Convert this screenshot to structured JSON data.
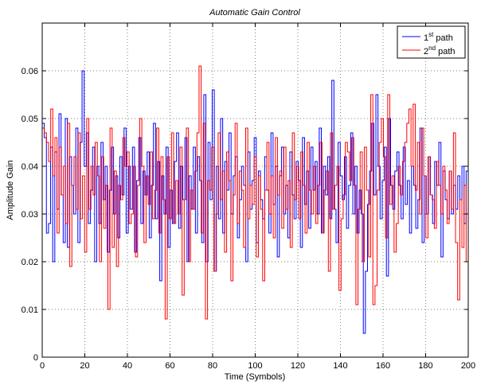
{
  "chart_data": {
    "type": "line",
    "style": "step",
    "title": "Automatic Gain Control",
    "xlabel": "Time (Symbols)",
    "ylabel": "Amplitude Gain",
    "xlim": [
      0,
      200
    ],
    "ylim": [
      0,
      0.07
    ],
    "xticks": [
      0,
      20,
      40,
      60,
      80,
      100,
      120,
      140,
      160,
      180,
      200
    ],
    "yticks": [
      0,
      0.01,
      0.02,
      0.03,
      0.04,
      0.05,
      0.06
    ],
    "xtick_labels": [
      "0",
      "20",
      "40",
      "60",
      "80",
      "100",
      "120",
      "140",
      "160",
      "180",
      "200"
    ],
    "ytick_labels": [
      "0",
      "0.01",
      "0.02",
      "0.03",
      "0.04",
      "0.05",
      "0.06"
    ],
    "grid": true,
    "legend_position": "top-right",
    "legend": [
      {
        "base": "1",
        "sup": "st",
        "rest": " path"
      },
      {
        "base": "2",
        "sup": "nd",
        "rest": " path"
      }
    ],
    "series": [
      {
        "color": "#0000ff",
        "values": [
          0.049,
          0.046,
          0.026,
          0.028,
          0.044,
          0.02,
          0.043,
          0.031,
          0.051,
          0.034,
          0.024,
          0.05,
          0.023,
          0.042,
          0.036,
          0.03,
          0.048,
          0.024,
          0.045,
          0.06,
          0.04,
          0.047,
          0.028,
          0.035,
          0.044,
          0.02,
          0.04,
          0.028,
          0.045,
          0.033,
          0.04,
          0.022,
          0.035,
          0.044,
          0.03,
          0.038,
          0.025,
          0.042,
          0.034,
          0.048,
          0.026,
          0.04,
          0.031,
          0.044,
          0.022,
          0.037,
          0.046,
          0.028,
          0.039,
          0.034,
          0.043,
          0.025,
          0.036,
          0.049,
          0.029,
          0.041,
          0.016,
          0.038,
          0.03,
          0.044,
          0.023,
          0.035,
          0.028,
          0.041,
          0.047,
          0.027,
          0.04,
          0.033,
          0.046,
          0.02,
          0.038,
          0.031,
          0.044,
          0.026,
          0.042,
          0.037,
          0.024,
          0.055,
          0.02,
          0.045,
          0.033,
          0.056,
          0.018,
          0.04,
          0.029,
          0.05,
          0.026,
          0.041,
          0.035,
          0.047,
          0.03,
          0.038,
          0.042,
          0.025,
          0.033,
          0.04,
          0.036,
          0.02,
          0.043,
          0.031,
          0.037,
          0.046,
          0.024,
          0.039,
          0.033,
          0.029,
          0.042,
          0.035,
          0.026,
          0.047,
          0.032,
          0.04,
          0.021,
          0.038,
          0.044,
          0.03,
          0.036,
          0.025,
          0.043,
          0.034,
          0.029,
          0.041,
          0.037,
          0.023,
          0.046,
          0.032,
          0.039,
          0.027,
          0.044,
          0.035,
          0.041,
          0.03,
          0.048,
          0.026,
          0.04,
          0.034,
          0.042,
          0.029,
          0.058,
          0.031,
          0.024,
          0.045,
          0.038,
          0.033,
          0.042,
          0.027,
          0.036,
          0.047,
          0.03,
          0.04,
          0.026,
          0.035,
          0.03,
          0.005,
          0.018,
          0.032,
          0.039,
          0.049,
          0.034,
          0.055,
          0.04,
          0.029,
          0.037,
          0.044,
          0.017,
          0.05,
          0.036,
          0.031,
          0.039,
          0.043,
          0.036,
          0.029,
          0.044,
          0.032,
          0.037,
          0.026,
          0.04,
          0.036,
          0.027,
          0.033,
          0.048,
          0.024,
          0.038,
          0.03,
          0.042,
          0.034,
          0.028,
          0.041,
          0.036,
          0.045,
          0.021,
          0.039,
          0.033,
          0.029,
          0.039,
          0.03,
          0.036,
          0.031,
          0.038,
          0.033,
          0.04,
          0.028,
          0.039
        ]
      },
      {
        "color": "#ff0000",
        "values": [
          0.048,
          0.047,
          0.045,
          0.041,
          0.052,
          0.038,
          0.046,
          0.026,
          0.044,
          0.034,
          0.04,
          0.028,
          0.049,
          0.019,
          0.036,
          0.042,
          0.031,
          0.047,
          0.029,
          0.038,
          0.022,
          0.05,
          0.031,
          0.04,
          0.034,
          0.045,
          0.038,
          0.02,
          0.042,
          0.027,
          0.036,
          0.01,
          0.048,
          0.023,
          0.039,
          0.019,
          0.036,
          0.033,
          0.046,
          0.04,
          0.043,
          0.028,
          0.03,
          0.04,
          0.021,
          0.036,
          0.05,
          0.04,
          0.024,
          0.038,
          0.032,
          0.043,
          0.029,
          0.035,
          0.048,
          0.026,
          0.042,
          0.033,
          0.008,
          0.042,
          0.029,
          0.047,
          0.028,
          0.037,
          0.03,
          0.044,
          0.013,
          0.033,
          0.048,
          0.02,
          0.035,
          0.031,
          0.039,
          0.047,
          0.061,
          0.026,
          0.049,
          0.008,
          0.037,
          0.035,
          0.044,
          0.018,
          0.03,
          0.047,
          0.033,
          0.039,
          0.022,
          0.043,
          0.037,
          0.016,
          0.034,
          0.049,
          0.028,
          0.039,
          0.035,
          0.023,
          0.048,
          0.029,
          0.036,
          0.032,
          0.042,
          0.021,
          0.038,
          0.031,
          0.016,
          0.035,
          0.045,
          0.03,
          0.038,
          0.025,
          0.046,
          0.034,
          0.039,
          0.027,
          0.044,
          0.031,
          0.037,
          0.023,
          0.047,
          0.033,
          0.04,
          0.029,
          0.043,
          0.036,
          0.026,
          0.045,
          0.035,
          0.03,
          0.04,
          0.028,
          0.036,
          0.045,
          0.026,
          0.035,
          0.039,
          0.018,
          0.047,
          0.031,
          0.036,
          0.04,
          0.014,
          0.029,
          0.034,
          0.045,
          0.043,
          0.037,
          0.046,
          0.036,
          0.011,
          0.031,
          0.043,
          0.02,
          0.044,
          0.035,
          0.021,
          0.055,
          0.011,
          0.015,
          0.035,
          0.045,
          0.05,
          0.042,
          0.025,
          0.055,
          0.032,
          0.038,
          0.022,
          0.028,
          0.04,
          0.034,
          0.041,
          0.045,
          0.049,
          0.052,
          0.04,
          0.053,
          0.035,
          0.045,
          0.03,
          0.048,
          0.038,
          0.025,
          0.042,
          0.034,
          0.033,
          0.027,
          0.041,
          0.036,
          0.03,
          0.04,
          0.035,
          0.028,
          0.039,
          0.031,
          0.047,
          0.024,
          0.012,
          0.033,
          0.023,
          0.036,
          0.02
        ]
      }
    ]
  }
}
